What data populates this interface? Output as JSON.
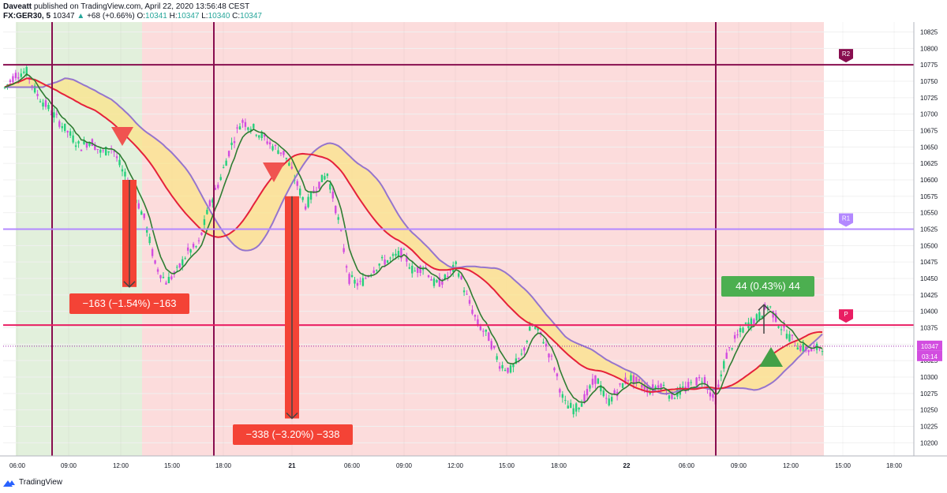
{
  "header": {
    "author": "Daveatt",
    "published": "published on TradingView.com, April 22, 2020 13:56:48 CEST",
    "symbol": "FX:GER30, 5",
    "last": "10347",
    "change": "+68 (+0.66%)",
    "o_label": "O:",
    "o": "10341",
    "h_label": "H:",
    "h": "10347",
    "l_label": "L:",
    "l": "10340",
    "c_label": "C:",
    "c": "10347"
  },
  "footer": {
    "brand": "TradingView"
  },
  "colors": {
    "bull": "#26d07c",
    "bear": "#d24de0",
    "green_bg": "#e2f0dc",
    "red_bg": "#fcdcdc",
    "pivot_r2": "#880e4f",
    "pivot_r1": "#b388ff",
    "pivot_p": "#e91e63",
    "fill": "#fbe48a",
    "ema_red": "#e5213b",
    "ema_purple": "#9575cd",
    "ema_green": "#2e7d32"
  },
  "chart_data": {
    "type": "candlestick",
    "instrument": "FX:GER30",
    "timeframe": "5",
    "y_ticks": [
      10825,
      10800,
      10775,
      10750,
      10725,
      10700,
      10675,
      10650,
      10625,
      10600,
      10575,
      10550,
      10525,
      10500,
      10475,
      10450,
      10425,
      10400,
      10375,
      10350,
      10325,
      10300,
      10275,
      10250,
      10225,
      10200
    ],
    "ylim": [
      10180,
      10840
    ],
    "x_ticks": [
      "06:00",
      "09:00",
      "12:00",
      "15:00",
      "18:00",
      "21",
      "06:00",
      "09:00",
      "12:00",
      "15:00",
      "18:00",
      "22",
      "06:00",
      "09:00",
      "12:00",
      "15:00",
      "18:00"
    ],
    "close_path": [
      10740,
      10760,
      10765,
      10730,
      10710,
      10690,
      10670,
      10650,
      10660,
      10640,
      10650,
      10610,
      10580,
      10540,
      10470,
      10445,
      10460,
      10490,
      10500,
      10560,
      10600,
      10650,
      10690,
      10680,
      10665,
      10650,
      10640,
      10600,
      10560,
      10590,
      10610,
      10540,
      10450,
      10440,
      10460,
      10475,
      10480,
      10490,
      10460,
      10470,
      10440,
      10450,
      10470,
      10420,
      10380,
      10360,
      10320,
      10310,
      10330,
      10380,
      10360,
      10320,
      10260,
      10250,
      10270,
      10300,
      10260,
      10280,
      10300,
      10290,
      10280,
      10290,
      10270,
      10280,
      10290,
      10300,
      10260,
      10330,
      10360,
      10380,
      10390,
      10410,
      10380,
      10360,
      10345,
      10340,
      10347
    ],
    "pivots": [
      {
        "label": "R2",
        "value": 10775
      },
      {
        "label": "R1",
        "value": 10525
      },
      {
        "label": "P",
        "value": 10379
      }
    ],
    "last_price": "10347",
    "countdown": "03:14",
    "measures": [
      {
        "text": "−163 (−1.54%) −163"
      },
      {
        "text": "−338 (−3.20%) −338"
      },
      {
        "text": "44 (0.43%) 44"
      }
    ],
    "signals": [
      {
        "type": "sell",
        "value": 10665
      },
      {
        "type": "sell",
        "value": 10614
      },
      {
        "type": "buy",
        "value": 10320
      }
    ]
  }
}
